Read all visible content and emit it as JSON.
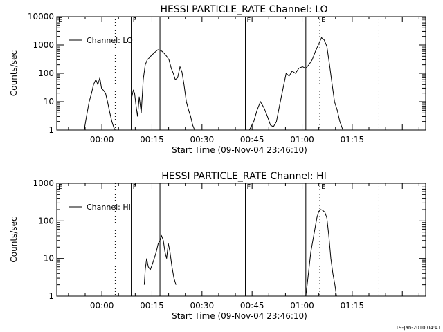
{
  "footer_timestamp": "19-Jan-2010 04:41",
  "chart_data": [
    {
      "type": "line",
      "title": "HESSI PARTICLE_RATE Channel: LO",
      "xlabel": "Start Time (09-Nov-04 23:46:10)",
      "ylabel": "Counts/sec",
      "yscale": "log",
      "ylim": [
        1,
        10000
      ],
      "xlim_minutes": [
        -13.5,
        97
      ],
      "y_ticks": [
        {
          "v": 1,
          "label": "1"
        },
        {
          "v": 10,
          "label": "10"
        },
        {
          "v": 100,
          "label": "100"
        },
        {
          "v": 1000,
          "label": "1000"
        },
        {
          "v": 10000,
          "label": "10000"
        }
      ],
      "x_ticks": [
        {
          "v": 0,
          "label": "00:00"
        },
        {
          "v": 15,
          "label": "00:15"
        },
        {
          "v": 30,
          "label": "00:30"
        },
        {
          "v": 45,
          "label": "00:45"
        },
        {
          "v": 60,
          "label": "01:00"
        },
        {
          "v": 75,
          "label": "01:15"
        }
      ],
      "legend": {
        "label": "Channel: LO",
        "placement": "top-left"
      },
      "events": [
        {
          "t": -13.5,
          "style": "solid",
          "label": "E"
        },
        {
          "t": 4.0,
          "style": "dotted",
          "label": ""
        },
        {
          "t": 8.8,
          "style": "solid",
          "label": "F"
        },
        {
          "t": 17.4,
          "style": "solid",
          "label": ""
        },
        {
          "t": 43.0,
          "style": "solid",
          "label": "F"
        },
        {
          "t": 61.1,
          "style": "solid",
          "label": ""
        },
        {
          "t": 65.3,
          "style": "dotted",
          "label": "E"
        },
        {
          "t": 83.0,
          "style": "dotted",
          "label": ""
        }
      ],
      "series": [
        {
          "x": [
            -5.3,
            -4.6,
            -3.8,
            -3.1,
            -2.5,
            -1.8,
            -1.2,
            -0.6,
            -0.1,
            0.5,
            1.1,
            1.7,
            2.4,
            3.0,
            3.6,
            4.0
          ],
          "y": [
            1,
            3,
            10,
            20,
            40,
            60,
            40,
            70,
            30,
            25,
            20,
            10,
            4,
            2,
            1.2,
            1
          ]
        },
        {
          "x": [
            8.8,
            9.0,
            9.4,
            9.8,
            10.2,
            10.7,
            11.2,
            11.8,
            12.4,
            13.0,
            13.6,
            14.2,
            14.8,
            15.5,
            16.2,
            16.8,
            17.4,
            18.0,
            18.7,
            19.4,
            20.1,
            20.8,
            21.4,
            22.0,
            22.7,
            23.4,
            24.0,
            24.6,
            25.3,
            26.0,
            26.6,
            27.2,
            27.8
          ],
          "y": [
            4,
            15,
            25,
            20,
            8,
            3,
            15,
            4,
            60,
            200,
            300,
            350,
            420,
            500,
            600,
            680,
            650,
            600,
            500,
            400,
            300,
            150,
            100,
            60,
            70,
            170,
            110,
            40,
            10,
            5,
            3,
            1.5,
            1
          ]
        },
        {
          "x": [
            44.2,
            45.5,
            46.5,
            47.5,
            48.6,
            49.6,
            50.5,
            51.4,
            52.3,
            53.3,
            54.3,
            55.2,
            56.1,
            57.0,
            58.0,
            59.0,
            60.1,
            61.1,
            62.0,
            63.0,
            64.0,
            65.0,
            65.8,
            66.6,
            67.4,
            68.2,
            69.0,
            69.7,
            70.5,
            71.3,
            72.2
          ],
          "y": [
            1,
            2,
            5,
            10,
            6,
            3,
            1.5,
            1.3,
            2,
            8,
            30,
            100,
            80,
            120,
            100,
            150,
            170,
            150,
            200,
            300,
            600,
            1100,
            1800,
            1500,
            900,
            200,
            40,
            10,
            5,
            2,
            1
          ]
        }
      ]
    },
    {
      "type": "line",
      "title": "HESSI PARTICLE_RATE Channel: HI",
      "xlabel": "Start Time (09-Nov-04 23:46:10)",
      "ylabel": "Counts/sec",
      "yscale": "log",
      "ylim": [
        1,
        1000
      ],
      "xlim_minutes": [
        -13.5,
        97
      ],
      "y_ticks": [
        {
          "v": 1,
          "label": "1"
        },
        {
          "v": 10,
          "label": "10"
        },
        {
          "v": 100,
          "label": "100"
        },
        {
          "v": 1000,
          "label": "1000"
        }
      ],
      "x_ticks": [
        {
          "v": 0,
          "label": "00:00"
        },
        {
          "v": 15,
          "label": "00:15"
        },
        {
          "v": 30,
          "label": "00:30"
        },
        {
          "v": 45,
          "label": "00:45"
        },
        {
          "v": 60,
          "label": "01:00"
        },
        {
          "v": 75,
          "label": "01:15"
        }
      ],
      "legend": {
        "label": "Channel: HI",
        "placement": "top-left"
      },
      "events": [
        {
          "t": -13.5,
          "style": "solid",
          "label": "E"
        },
        {
          "t": 4.0,
          "style": "dotted",
          "label": ""
        },
        {
          "t": 8.8,
          "style": "solid",
          "label": "F"
        },
        {
          "t": 17.4,
          "style": "solid",
          "label": ""
        },
        {
          "t": 43.0,
          "style": "solid",
          "label": "F"
        },
        {
          "t": 61.1,
          "style": "solid",
          "label": ""
        },
        {
          "t": 65.3,
          "style": "dotted",
          "label": "E"
        },
        {
          "t": 83.0,
          "style": "dotted",
          "label": ""
        }
      ],
      "series": [
        {
          "x": [
            12.7,
            13.0,
            13.4,
            13.9,
            14.5,
            15.1,
            15.7,
            16.3,
            16.9,
            17.4,
            17.9,
            18.4,
            18.9,
            19.4,
            19.9,
            20.4,
            21.0,
            21.6,
            22.2
          ],
          "y": [
            2,
            5,
            10,
            6,
            5,
            7,
            10,
            15,
            25,
            30,
            40,
            30,
            15,
            10,
            25,
            15,
            6,
            3,
            2
          ]
        },
        {
          "x": [
            61.1,
            61.5,
            62.0,
            62.6,
            63.2,
            63.8,
            64.4,
            65.0,
            65.6,
            66.2,
            66.8,
            67.4,
            68.0,
            68.6,
            69.2,
            69.8,
            70.3
          ],
          "y": [
            1,
            2,
            5,
            15,
            30,
            60,
            120,
            180,
            200,
            190,
            170,
            120,
            40,
            10,
            4,
            2,
            1
          ]
        }
      ]
    }
  ]
}
